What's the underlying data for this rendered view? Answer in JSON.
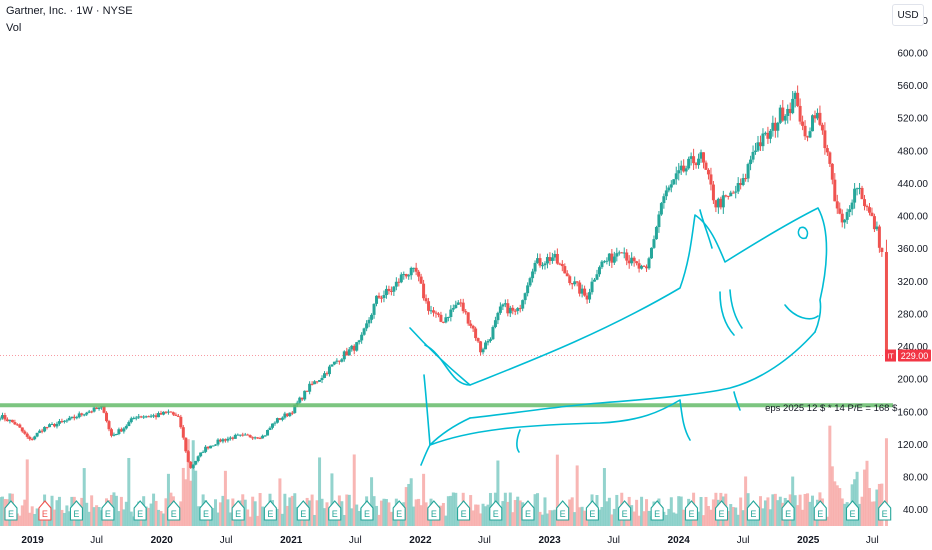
{
  "header": {
    "title": "Gartner, Inc. · 1W · NYSE",
    "volume_label": "Vol",
    "currency": "USD"
  },
  "colors": {
    "up": "#26a69a",
    "down": "#ef5350",
    "vol_up": "#80cbc4",
    "vol_down": "#f7a9a7",
    "support_line": "#66bb6a",
    "price_tag": "#f23645",
    "drawing": "#00bcd4"
  },
  "chart_data": {
    "type": "candlestick",
    "symbol": "IT",
    "interval": "1W",
    "ylim": [
      20,
      660
    ],
    "y_ticks": [
      40,
      80,
      120,
      160,
      200,
      240,
      280,
      320,
      360,
      400,
      440,
      480,
      520,
      560,
      600,
      640
    ],
    "y_tick_labels": [
      "40.00",
      "80.00",
      "120.00",
      "160.00",
      "200.00",
      "240.00",
      "280.00",
      "320.00",
      "360.00",
      "400.00",
      "440.00",
      "480.00",
      "520.00",
      "560.00",
      "600.00",
      "640.00"
    ],
    "x_range": [
      "2018-10-01",
      "2025-08-20"
    ],
    "x_ticks": [
      {
        "label": "2019",
        "date": "2019-01-01",
        "bold": true
      },
      {
        "label": "Jul",
        "date": "2019-07-01",
        "bold": false
      },
      {
        "label": "2020",
        "date": "2020-01-01",
        "bold": true
      },
      {
        "label": "Jul",
        "date": "2020-07-01",
        "bold": false
      },
      {
        "label": "2021",
        "date": "2021-01-01",
        "bold": true
      },
      {
        "label": "Jul",
        "date": "2021-07-01",
        "bold": false
      },
      {
        "label": "2022",
        "date": "2022-01-01",
        "bold": true
      },
      {
        "label": "Jul",
        "date": "2022-07-01",
        "bold": false
      },
      {
        "label": "2023",
        "date": "2023-01-01",
        "bold": true
      },
      {
        "label": "Jul",
        "date": "2023-07-01",
        "bold": false
      },
      {
        "label": "2024",
        "date": "2024-01-01",
        "bold": true
      },
      {
        "label": "Jul",
        "date": "2024-07-01",
        "bold": false
      },
      {
        "label": "2025",
        "date": "2025-01-01",
        "bold": true
      },
      {
        "label": "Jul",
        "date": "2025-07-01",
        "bold": false
      }
    ],
    "price_path": [
      [
        "2018-10-01",
        155
      ],
      [
        "2018-11-15",
        145
      ],
      [
        "2018-12-24",
        125
      ],
      [
        "2019-02-01",
        140
      ],
      [
        "2019-04-15",
        150
      ],
      [
        "2019-06-01",
        160
      ],
      [
        "2019-07-20",
        165
      ],
      [
        "2019-08-10",
        130
      ],
      [
        "2019-09-15",
        140
      ],
      [
        "2019-10-20",
        155
      ],
      [
        "2019-12-15",
        155
      ],
      [
        "2020-01-25",
        160
      ],
      [
        "2020-02-20",
        150
      ],
      [
        "2020-03-20",
        90
      ],
      [
        "2020-05-01",
        115
      ],
      [
        "2020-06-15",
        125
      ],
      [
        "2020-08-01",
        130
      ],
      [
        "2020-10-15",
        130
      ],
      [
        "2020-11-15",
        148
      ],
      [
        "2021-01-01",
        160
      ],
      [
        "2021-02-20",
        190
      ],
      [
        "2021-04-01",
        205
      ],
      [
        "2021-05-15",
        225
      ],
      [
        "2021-07-15",
        245
      ],
      [
        "2021-09-01",
        300
      ],
      [
        "2021-10-15",
        310
      ],
      [
        "2021-11-15",
        330
      ],
      [
        "2021-12-20",
        330
      ],
      [
        "2022-01-20",
        290
      ],
      [
        "2022-03-01",
        270
      ],
      [
        "2022-04-20",
        295
      ],
      [
        "2022-06-01",
        260
      ],
      [
        "2022-06-20",
        235
      ],
      [
        "2022-07-15",
        250
      ],
      [
        "2022-08-20",
        290
      ],
      [
        "2022-10-01",
        280
      ],
      [
        "2022-11-15",
        340
      ],
      [
        "2023-01-10",
        350
      ],
      [
        "2023-02-15",
        330
      ],
      [
        "2023-03-15",
        315
      ],
      [
        "2023-04-15",
        300
      ],
      [
        "2023-05-20",
        340
      ],
      [
        "2023-07-01",
        350
      ],
      [
        "2023-07-20",
        365
      ],
      [
        "2023-08-15",
        345
      ],
      [
        "2023-10-01",
        330
      ],
      [
        "2023-11-15",
        420
      ],
      [
        "2024-01-01",
        450
      ],
      [
        "2024-03-01",
        475
      ],
      [
        "2024-04-15",
        415
      ],
      [
        "2024-05-15",
        420
      ],
      [
        "2024-07-01",
        440
      ],
      [
        "2024-08-01",
        485
      ],
      [
        "2024-09-15",
        500
      ],
      [
        "2024-10-15",
        525
      ],
      [
        "2024-12-01",
        545
      ],
      [
        "2024-12-20",
        490
      ],
      [
        "2025-01-20",
        530
      ],
      [
        "2025-02-10",
        500
      ],
      [
        "2025-02-25",
        480
      ],
      [
        "2025-03-15",
        420
      ],
      [
        "2025-04-10",
        385
      ],
      [
        "2025-05-01",
        420
      ],
      [
        "2025-05-20",
        440
      ],
      [
        "2025-06-15",
        410
      ],
      [
        "2025-07-15",
        380
      ],
      [
        "2025-08-01",
        345
      ],
      [
        "2025-08-10",
        229
      ]
    ],
    "current_price": 229.0,
    "current_price_label": "229.00",
    "ticker_label": "IT",
    "support_level": 168,
    "annotations": [
      {
        "text": "eps 2025 12 $ * 14 P/E = 168 $",
        "date": "2024-09-01",
        "price": 178
      }
    ],
    "earnings_marker_label": "E",
    "earnings_dates": [
      "2018-11-01",
      "2019-02-05",
      "2019-05-05",
      "2019-08-02",
      "2019-11-01",
      "2020-02-04",
      "2020-05-05",
      "2020-08-04",
      "2020-11-03",
      "2021-02-04",
      "2021-05-04",
      "2021-08-03",
      "2021-11-02",
      "2022-02-08",
      "2022-05-03",
      "2022-08-02",
      "2022-11-01",
      "2023-02-07",
      "2023-05-02",
      "2023-08-01",
      "2023-11-01",
      "2024-02-06",
      "2024-05-01",
      "2024-07-30",
      "2024-11-05",
      "2025-02-04",
      "2025-05-06",
      "2025-08-05"
    ],
    "red_earnings_index": 1,
    "volume_scale_max": 4
  }
}
